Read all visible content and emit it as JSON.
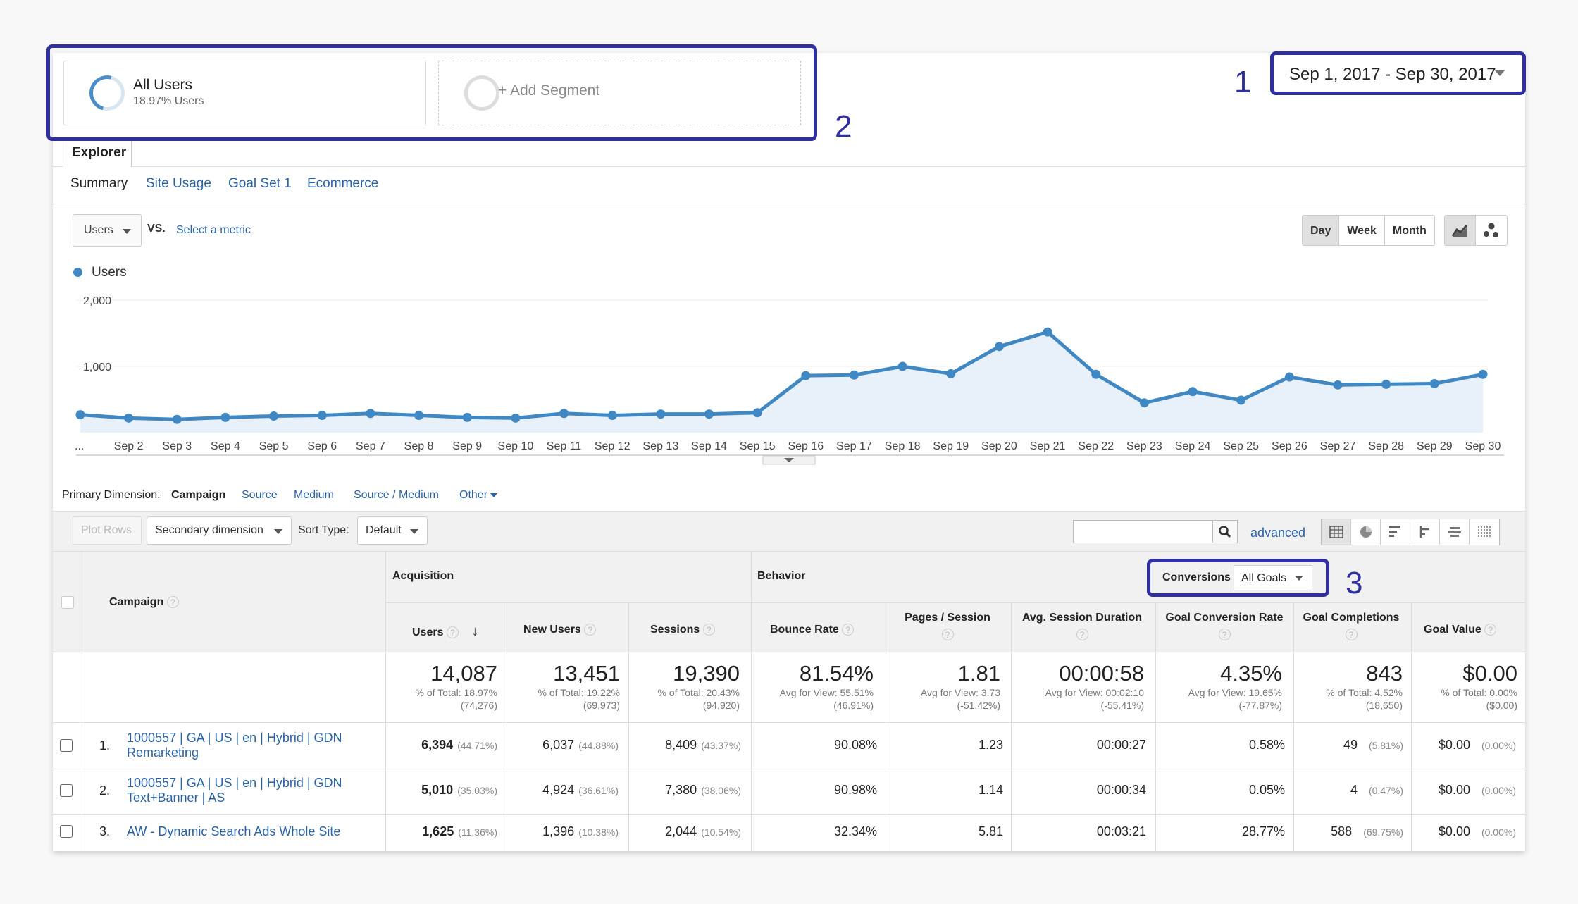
{
  "segments": [
    {
      "title": "All Users",
      "subtitle": "18.97% Users"
    },
    {
      "title": "+ Add Segment"
    }
  ],
  "date_range": "Sep 1, 2017 - Sep 30, 2017",
  "annotations": [
    "1",
    "2",
    "3"
  ],
  "explorer_tab": "Explorer",
  "subtabs": [
    "Summary",
    "Site Usage",
    "Goal Set 1",
    "Ecommerce"
  ],
  "metric_select": "Users",
  "vs_label": "VS.",
  "select_metric": "Select a metric",
  "granularity": [
    "Day",
    "Week",
    "Month"
  ],
  "legend": "Users",
  "chart_data": {
    "type": "area",
    "y_ticks": [
      "2,000",
      "1,000"
    ],
    "ylim": [
      0,
      2000
    ],
    "x": [
      "...",
      "Sep 2",
      "Sep 3",
      "Sep 4",
      "Sep 5",
      "Sep 6",
      "Sep 7",
      "Sep 8",
      "Sep 9",
      "Sep 10",
      "Sep 11",
      "Sep 12",
      "Sep 13",
      "Sep 14",
      "Sep 15",
      "Sep 16",
      "Sep 17",
      "Sep 18",
      "Sep 19",
      "Sep 20",
      "Sep 21",
      "Sep 22",
      "Sep 23",
      "Sep 24",
      "Sep 25",
      "Sep 26",
      "Sep 27",
      "Sep 28",
      "Sep 29",
      "Sep 30"
    ],
    "series": [
      {
        "name": "Users",
        "values": [
          270,
          220,
          200,
          230,
          250,
          260,
          290,
          260,
          230,
          220,
          290,
          260,
          280,
          280,
          300,
          860,
          870,
          1000,
          890,
          1300,
          1520,
          880,
          450,
          620,
          490,
          840,
          720,
          730,
          740,
          880
        ]
      }
    ]
  },
  "primary_dimension": {
    "label": "Primary Dimension:",
    "items": [
      "Campaign",
      "Source",
      "Medium",
      "Source / Medium",
      "Other"
    ]
  },
  "toolbar": {
    "plot_rows": "Plot Rows",
    "secondary_dimension": "Secondary dimension",
    "sort_type_label": "Sort Type:",
    "sort_type": "Default",
    "advanced": "advanced"
  },
  "table": {
    "groups": {
      "acquisition": "Acquisition",
      "behavior": "Behavior",
      "conversions": "Conversions",
      "goal_option": "All Goals"
    },
    "campaign_header": "Campaign",
    "columns": [
      "Users",
      "New Users",
      "Sessions",
      "Bounce Rate",
      "Pages / Session",
      "Avg. Session Duration",
      "Goal Conversion Rate",
      "Goal Completions",
      "Goal Value"
    ],
    "totals": [
      {
        "value": "14,087",
        "line1": "% of Total: 18.97%",
        "line2": "(74,276)"
      },
      {
        "value": "13,451",
        "line1": "% of Total: 19.22%",
        "line2": "(69,973)"
      },
      {
        "value": "19,390",
        "line1": "% of Total: 20.43%",
        "line2": "(94,920)"
      },
      {
        "value": "81.54%",
        "line1": "Avg for View: 55.51%",
        "line2": "(46.91%)"
      },
      {
        "value": "1.81",
        "line1": "Avg for View: 3.73",
        "line2": "(-51.42%)"
      },
      {
        "value": "00:00:58",
        "line1": "Avg for View: 00:02:10",
        "line2": "(-55.41%)"
      },
      {
        "value": "4.35%",
        "line1": "Avg for View: 19.65%",
        "line2": "(-77.87%)"
      },
      {
        "value": "843",
        "line1": "% of Total: 4.52%",
        "line2": "(18,650)"
      },
      {
        "value": "$0.00",
        "line1": "% of Total: 0.00%",
        "line2": "($0.00)"
      }
    ],
    "rows": [
      {
        "num": "1.",
        "campaign_l1": "1000557 | GA | US | en | Hybrid | GDN",
        "campaign_l2": "Remarketing",
        "users": "6,394",
        "users_pct": "(44.71%)",
        "new_users": "6,037",
        "new_users_pct": "(44.88%)",
        "sessions": "8,409",
        "sessions_pct": "(43.37%)",
        "bounce": "90.08%",
        "pps": "1.23",
        "duration": "00:00:27",
        "gcr": "0.58%",
        "completions": "49",
        "completions_pct": "(5.81%)",
        "value": "$0.00",
        "value_pct": "(0.00%)"
      },
      {
        "num": "2.",
        "campaign_l1": "1000557 | GA | US | en | Hybrid | GDN",
        "campaign_l2": "Text+Banner | AS",
        "users": "5,010",
        "users_pct": "(35.03%)",
        "new_users": "4,924",
        "new_users_pct": "(36.61%)",
        "sessions": "7,380",
        "sessions_pct": "(38.06%)",
        "bounce": "90.98%",
        "pps": "1.14",
        "duration": "00:00:34",
        "gcr": "0.05%",
        "completions": "4",
        "completions_pct": "(0.47%)",
        "value": "$0.00",
        "value_pct": "(0.00%)"
      },
      {
        "num": "3.",
        "campaign_l1": "AW - Dynamic Search Ads Whole Site",
        "campaign_l2": "",
        "users": "1,625",
        "users_pct": "(11.36%)",
        "new_users": "1,396",
        "new_users_pct": "(10.38%)",
        "sessions": "2,044",
        "sessions_pct": "(10.54%)",
        "bounce": "32.34%",
        "pps": "5.81",
        "duration": "00:03:21",
        "gcr": "28.77%",
        "completions": "588",
        "completions_pct": "(69.75%)",
        "value": "$0.00",
        "value_pct": "(0.00%)"
      }
    ]
  },
  "colors": {
    "accent": "#4088c4",
    "link": "#2a63a4",
    "highlight": "#2f2fa0",
    "area_fill": "#e8f0f9"
  }
}
